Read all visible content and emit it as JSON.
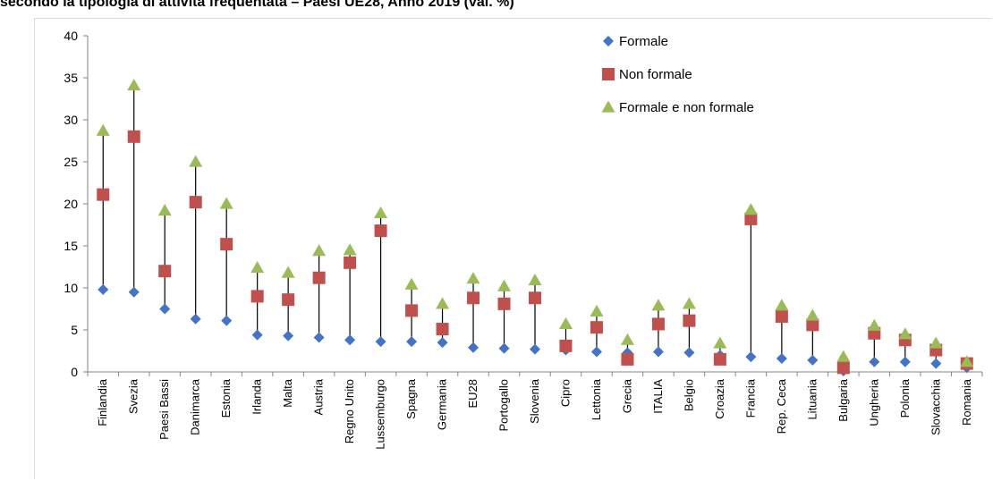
{
  "title": "secondo la tipologia di attività frequentata – Paesi UE28, Anno 2019 (val. %)",
  "chart_data": {
    "type": "scatter",
    "title": "secondo la tipologia di attività frequentata – Paesi UE28, Anno 2019 (val. %)",
    "xlabel": "",
    "ylabel": "",
    "ylim": [
      0,
      40
    ],
    "yticks": [
      0,
      5,
      10,
      15,
      20,
      25,
      30,
      35,
      40
    ],
    "grid": false,
    "legend_position": "top-right",
    "categories": [
      "Finlandia",
      "Svezia",
      "Paesi Bassi",
      "Danimarca",
      "Estonia",
      "Irlanda",
      "Malta",
      "Austria",
      "Regno Unito",
      "Lussemburgo",
      "Spagna",
      "Germania",
      "EU28",
      "Portogallo",
      "Slovenia",
      "Cipro",
      "Lettonia",
      "Grecia",
      "ITALIA",
      "Belgio",
      "Croazia",
      "Francia",
      "Rep. Ceca",
      "Lituania",
      "Bulgaria",
      "Ungheria",
      "Polonia",
      "Slovacchia",
      "Romania"
    ],
    "series": [
      {
        "name": "Formale",
        "marker": "diamond",
        "color": "#4472C4",
        "values": [
          9.8,
          9.5,
          7.5,
          6.3,
          6.1,
          4.4,
          4.3,
          4.1,
          3.8,
          3.6,
          3.6,
          3.5,
          2.9,
          2.8,
          2.7,
          2.6,
          2.4,
          2.3,
          2.4,
          2.3,
          2.0,
          1.8,
          1.6,
          1.4,
          0.1,
          1.2,
          1.2,
          1.0,
          0.5
        ]
      },
      {
        "name": "Non formale",
        "marker": "square",
        "color": "#C0504D",
        "values": [
          21.1,
          28.0,
          12.0,
          20.2,
          15.2,
          9.0,
          8.6,
          11.2,
          13.0,
          16.8,
          7.3,
          5.1,
          8.8,
          8.1,
          8.8,
          3.1,
          5.3,
          1.5,
          5.7,
          6.1,
          1.5,
          18.2,
          6.6,
          5.6,
          0.5,
          4.6,
          3.8,
          2.6,
          1.0
        ]
      },
      {
        "name": "Formale e non formale",
        "marker": "triangle",
        "color": "#9BBB59",
        "values": [
          28.7,
          34.1,
          19.2,
          25.0,
          20.0,
          12.4,
          11.8,
          14.4,
          14.5,
          18.9,
          10.4,
          8.1,
          11.1,
          10.2,
          10.9,
          5.7,
          7.2,
          3.8,
          7.9,
          8.1,
          3.4,
          19.3,
          7.9,
          6.7,
          1.8,
          5.5,
          4.5,
          3.4,
          1.2
        ]
      }
    ]
  }
}
